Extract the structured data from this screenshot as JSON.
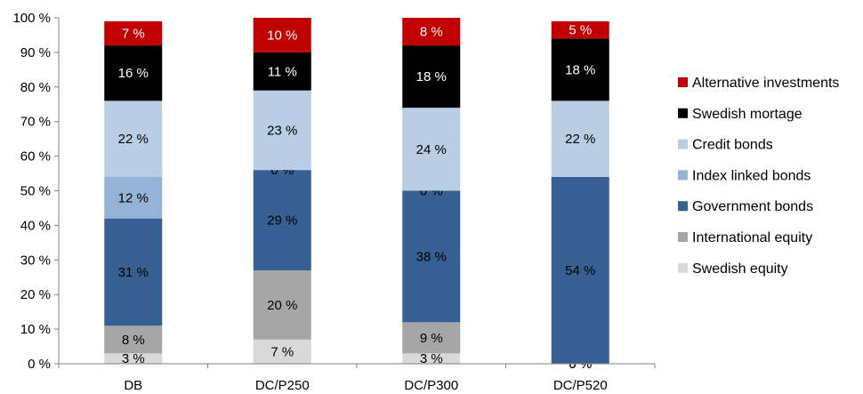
{
  "chart_data": {
    "type": "bar",
    "stacked": true,
    "categories": [
      "DB",
      "DC/P250",
      "DC/P300",
      "DC/P520"
    ],
    "ylim": [
      0,
      100
    ],
    "ytick_labels": [
      "0 %",
      "10 %",
      "20 %",
      "30 %",
      "40 %",
      "50 %",
      "60 %",
      "70 %",
      "80 %",
      "90 %",
      "100 %"
    ],
    "legend_position": "right",
    "series": [
      {
        "name": "Swedish equity",
        "color": "#d9d9d9",
        "values": [
          3,
          7,
          3,
          0
        ],
        "labels": [
          "3 %",
          "7 %",
          "3 %",
          "0 %"
        ]
      },
      {
        "name": "International equity",
        "color": "#a6a6a6",
        "values": [
          8,
          20,
          9,
          0
        ],
        "labels": [
          "8 %",
          "20 %",
          "9 %",
          "0 %"
        ]
      },
      {
        "name": "Government bonds",
        "color": "#376092",
        "values": [
          31,
          29,
          38,
          54
        ],
        "labels": [
          "31 %",
          "29 %",
          "38 %",
          "54 %"
        ]
      },
      {
        "name": "Index linked bonds",
        "color": "#95b3d7",
        "values": [
          12,
          0,
          0,
          0
        ],
        "labels": [
          "12 %",
          "0 %",
          "0 %",
          ""
        ]
      },
      {
        "name": "Credit bonds",
        "color": "#b9cde5",
        "values": [
          22,
          23,
          24,
          22
        ],
        "labels": [
          "22 %",
          "23 %",
          "24 %",
          "22 %"
        ]
      },
      {
        "name": "Swedish mortage",
        "color": "#000000",
        "values": [
          16,
          11,
          18,
          18
        ],
        "labels": [
          "16 %",
          "11 %",
          "18 %",
          "18 %"
        ]
      },
      {
        "name": "Alternative investments",
        "color": "#c00000",
        "values": [
          7,
          10,
          8,
          5
        ],
        "labels": [
          "7 %",
          "10 %",
          "8 %",
          "5 %"
        ]
      }
    ],
    "label_colors": {
      "#d9d9d9": "#000000",
      "#a6a6a6": "#000000",
      "#376092": "#000000",
      "#95b3d7": "#000000",
      "#b9cde5": "#000000",
      "#000000": "#ffffff",
      "#c00000": "#ffffff"
    }
  }
}
